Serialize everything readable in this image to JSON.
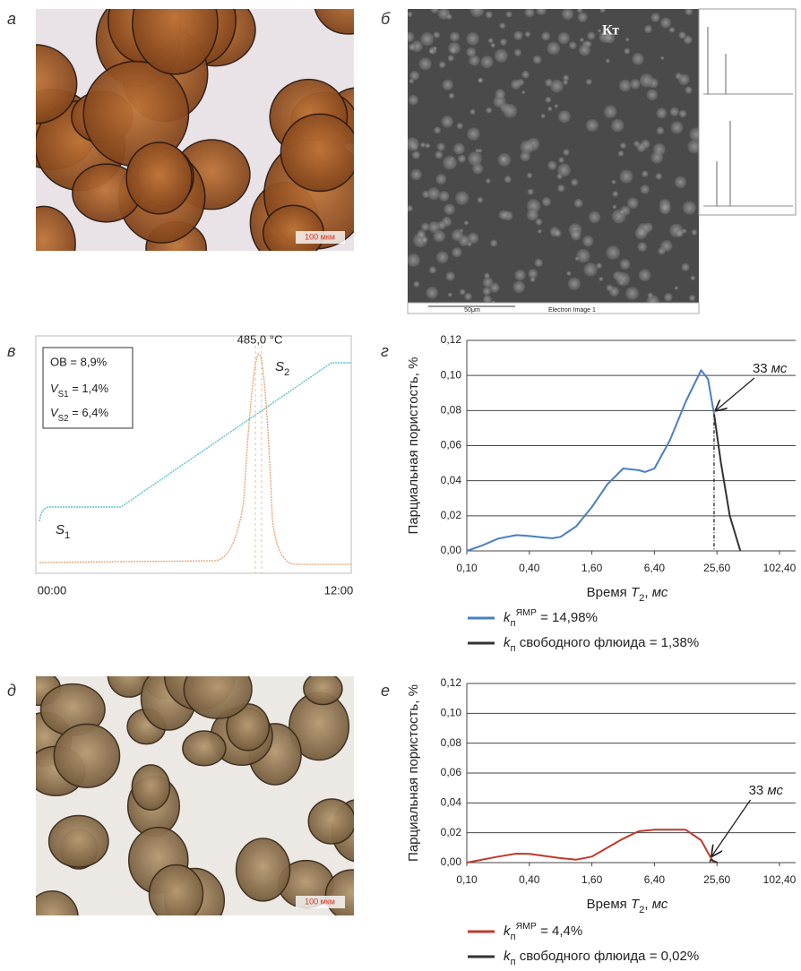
{
  "panel_labels": [
    "а",
    "б",
    "в",
    "г",
    "д",
    "е"
  ],
  "photo_a": {
    "scale_bar": "100 мкм"
  },
  "sem_b": {
    "phase_label": "Кт",
    "scale_bar": "50μm",
    "caption": "Electron Image 1"
  },
  "pyrolysis_v": {
    "peak_label": "485,0 °C",
    "stats": [
      "ОВ = 8,9%",
      "VS1 = 1,4%",
      "VS2 = 6,4%"
    ],
    "s1": "S1",
    "s2": "S2",
    "x_start": "00:00",
    "x_end": "12:00"
  },
  "photo_d": {
    "scale_bar": "100 мкм"
  },
  "chart_data": [
    {
      "type": "line",
      "y_label": "Парциальная пористость, %",
      "x_label": "Время T2, мс",
      "annotation": "33 мс",
      "x_log": true,
      "grid": true,
      "xlim": [
        0.1,
        102.4
      ],
      "ylim": [
        0,
        0.12
      ],
      "xticks": [
        {
          "value": 0.1,
          "label": "0,10"
        },
        {
          "value": 0.4,
          "label": "0,40"
        },
        {
          "value": 1.6,
          "label": "1,60"
        },
        {
          "value": 6.4,
          "label": "6,40"
        },
        {
          "value": 25.6,
          "label": "25,60"
        },
        {
          "value": 102.4,
          "label": "102,40"
        }
      ],
      "yticks": [
        {
          "value": 0,
          "label": "0,00"
        },
        {
          "value": 0.02,
          "label": "0,02"
        },
        {
          "value": 0.04,
          "label": "0,04"
        },
        {
          "value": 0.06,
          "label": "0,06"
        },
        {
          "value": 0.08,
          "label": "0,08"
        },
        {
          "value": 0.1,
          "label": "0,10"
        },
        {
          "value": 0.12,
          "label": "0,12"
        }
      ],
      "series": [
        {
          "name": "kпЯМР = 14,98%",
          "color": "#4a7fc1",
          "x": [
            0.1,
            0.14,
            0.2,
            0.3,
            0.4,
            0.57,
            0.67,
            0.8,
            1.13,
            1.6,
            2.26,
            3.2,
            4.5,
            5.2,
            6.4,
            9,
            12.8,
            18,
            21,
            24
          ],
          "values": [
            0,
            0.003,
            0.007,
            0.009,
            0.0085,
            0.0075,
            0.0072,
            0.008,
            0.014,
            0.025,
            0.038,
            0.047,
            0.046,
            0.045,
            0.047,
            0.063,
            0.085,
            0.103,
            0.098,
            0.078
          ]
        },
        {
          "name": "kп свободного флюида = 1,38%",
          "color": "#333333",
          "x": [
            24,
            28,
            34,
            43
          ],
          "values": [
            0.078,
            0.05,
            0.02,
            0
          ]
        }
      ]
    },
    {
      "type": "line",
      "y_label": "Парциальная пористость, %",
      "x_label": "Время T2, мс",
      "annotation": "33 мс",
      "x_log": true,
      "grid": true,
      "xlim": [
        0.1,
        102.4
      ],
      "ylim": [
        0,
        0.12
      ],
      "xticks": [
        {
          "value": 0.1,
          "label": "0,10"
        },
        {
          "value": 0.4,
          "label": "0,40"
        },
        {
          "value": 1.6,
          "label": "1,60"
        },
        {
          "value": 6.4,
          "label": "6,40"
        },
        {
          "value": 25.6,
          "label": "25,60"
        },
        {
          "value": 102.4,
          "label": "102,40"
        }
      ],
      "yticks": [
        {
          "value": 0,
          "label": "0,00"
        },
        {
          "value": 0.02,
          "label": "0,02"
        },
        {
          "value": 0.04,
          "label": "0,04"
        },
        {
          "value": 0.06,
          "label": "0,06"
        },
        {
          "value": 0.08,
          "label": "0,08"
        },
        {
          "value": 0.1,
          "label": "0,10"
        },
        {
          "value": 0.12,
          "label": "0,12"
        }
      ],
      "series": [
        {
          "name": "kпЯМР = 4,4%",
          "color": "#c0392b",
          "x": [
            0.1,
            0.2,
            0.3,
            0.4,
            0.8,
            1.13,
            1.6,
            3.2,
            4.5,
            6.4,
            12.8,
            18,
            22,
            24
          ],
          "values": [
            0,
            0.004,
            0.006,
            0.0058,
            0.003,
            0.002,
            0.004,
            0.016,
            0.021,
            0.022,
            0.022,
            0.015,
            0.004,
            0
          ]
        },
        {
          "name": "kп свободного флюида = 0,02%",
          "color": "#333333",
          "x": [
            22,
            26
          ],
          "values": [
            0.002,
            0
          ]
        }
      ]
    }
  ]
}
